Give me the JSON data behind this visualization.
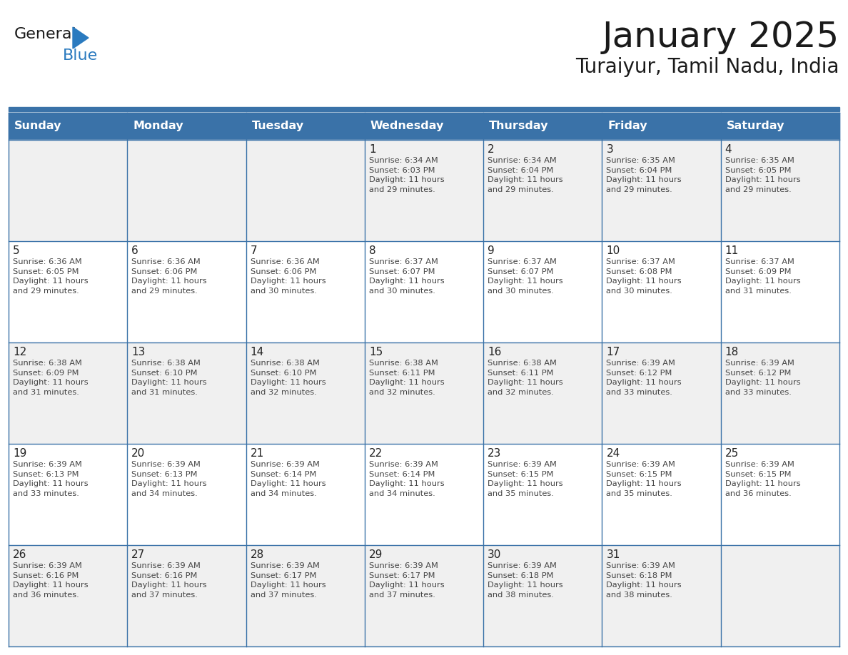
{
  "title": "January 2025",
  "subtitle": "Turaiyur, Tamil Nadu, India",
  "days_of_week": [
    "Sunday",
    "Monday",
    "Tuesday",
    "Wednesday",
    "Thursday",
    "Friday",
    "Saturday"
  ],
  "header_bg": "#3a72a8",
  "header_text": "#ffffff",
  "row_bg_light": "#f0f0f0",
  "row_bg_white": "#ffffff",
  "border_color": "#3a72a8",
  "text_color": "#444444",
  "day_num_color": "#222222",
  "calendar_data": [
    [
      {
        "day": null,
        "info": ""
      },
      {
        "day": null,
        "info": ""
      },
      {
        "day": null,
        "info": ""
      },
      {
        "day": 1,
        "info": "Sunrise: 6:34 AM\nSunset: 6:03 PM\nDaylight: 11 hours\nand 29 minutes."
      },
      {
        "day": 2,
        "info": "Sunrise: 6:34 AM\nSunset: 6:04 PM\nDaylight: 11 hours\nand 29 minutes."
      },
      {
        "day": 3,
        "info": "Sunrise: 6:35 AM\nSunset: 6:04 PM\nDaylight: 11 hours\nand 29 minutes."
      },
      {
        "day": 4,
        "info": "Sunrise: 6:35 AM\nSunset: 6:05 PM\nDaylight: 11 hours\nand 29 minutes."
      }
    ],
    [
      {
        "day": 5,
        "info": "Sunrise: 6:36 AM\nSunset: 6:05 PM\nDaylight: 11 hours\nand 29 minutes."
      },
      {
        "day": 6,
        "info": "Sunrise: 6:36 AM\nSunset: 6:06 PM\nDaylight: 11 hours\nand 29 minutes."
      },
      {
        "day": 7,
        "info": "Sunrise: 6:36 AM\nSunset: 6:06 PM\nDaylight: 11 hours\nand 30 minutes."
      },
      {
        "day": 8,
        "info": "Sunrise: 6:37 AM\nSunset: 6:07 PM\nDaylight: 11 hours\nand 30 minutes."
      },
      {
        "day": 9,
        "info": "Sunrise: 6:37 AM\nSunset: 6:07 PM\nDaylight: 11 hours\nand 30 minutes."
      },
      {
        "day": 10,
        "info": "Sunrise: 6:37 AM\nSunset: 6:08 PM\nDaylight: 11 hours\nand 30 minutes."
      },
      {
        "day": 11,
        "info": "Sunrise: 6:37 AM\nSunset: 6:09 PM\nDaylight: 11 hours\nand 31 minutes."
      }
    ],
    [
      {
        "day": 12,
        "info": "Sunrise: 6:38 AM\nSunset: 6:09 PM\nDaylight: 11 hours\nand 31 minutes."
      },
      {
        "day": 13,
        "info": "Sunrise: 6:38 AM\nSunset: 6:10 PM\nDaylight: 11 hours\nand 31 minutes."
      },
      {
        "day": 14,
        "info": "Sunrise: 6:38 AM\nSunset: 6:10 PM\nDaylight: 11 hours\nand 32 minutes."
      },
      {
        "day": 15,
        "info": "Sunrise: 6:38 AM\nSunset: 6:11 PM\nDaylight: 11 hours\nand 32 minutes."
      },
      {
        "day": 16,
        "info": "Sunrise: 6:38 AM\nSunset: 6:11 PM\nDaylight: 11 hours\nand 32 minutes."
      },
      {
        "day": 17,
        "info": "Sunrise: 6:39 AM\nSunset: 6:12 PM\nDaylight: 11 hours\nand 33 minutes."
      },
      {
        "day": 18,
        "info": "Sunrise: 6:39 AM\nSunset: 6:12 PM\nDaylight: 11 hours\nand 33 minutes."
      }
    ],
    [
      {
        "day": 19,
        "info": "Sunrise: 6:39 AM\nSunset: 6:13 PM\nDaylight: 11 hours\nand 33 minutes."
      },
      {
        "day": 20,
        "info": "Sunrise: 6:39 AM\nSunset: 6:13 PM\nDaylight: 11 hours\nand 34 minutes."
      },
      {
        "day": 21,
        "info": "Sunrise: 6:39 AM\nSunset: 6:14 PM\nDaylight: 11 hours\nand 34 minutes."
      },
      {
        "day": 22,
        "info": "Sunrise: 6:39 AM\nSunset: 6:14 PM\nDaylight: 11 hours\nand 34 minutes."
      },
      {
        "day": 23,
        "info": "Sunrise: 6:39 AM\nSunset: 6:15 PM\nDaylight: 11 hours\nand 35 minutes."
      },
      {
        "day": 24,
        "info": "Sunrise: 6:39 AM\nSunset: 6:15 PM\nDaylight: 11 hours\nand 35 minutes."
      },
      {
        "day": 25,
        "info": "Sunrise: 6:39 AM\nSunset: 6:15 PM\nDaylight: 11 hours\nand 36 minutes."
      }
    ],
    [
      {
        "day": 26,
        "info": "Sunrise: 6:39 AM\nSunset: 6:16 PM\nDaylight: 11 hours\nand 36 minutes."
      },
      {
        "day": 27,
        "info": "Sunrise: 6:39 AM\nSunset: 6:16 PM\nDaylight: 11 hours\nand 37 minutes."
      },
      {
        "day": 28,
        "info": "Sunrise: 6:39 AM\nSunset: 6:17 PM\nDaylight: 11 hours\nand 37 minutes."
      },
      {
        "day": 29,
        "info": "Sunrise: 6:39 AM\nSunset: 6:17 PM\nDaylight: 11 hours\nand 37 minutes."
      },
      {
        "day": 30,
        "info": "Sunrise: 6:39 AM\nSunset: 6:18 PM\nDaylight: 11 hours\nand 38 minutes."
      },
      {
        "day": 31,
        "info": "Sunrise: 6:39 AM\nSunset: 6:18 PM\nDaylight: 11 hours\nand 38 minutes."
      },
      {
        "day": null,
        "info": ""
      }
    ]
  ],
  "logo_general_color": "#1a1a1a",
  "logo_blue_color": "#2a7abf",
  "logo_triangle_color": "#2a7abf",
  "fig_width": 11.88,
  "fig_height": 9.18,
  "dpi": 100
}
